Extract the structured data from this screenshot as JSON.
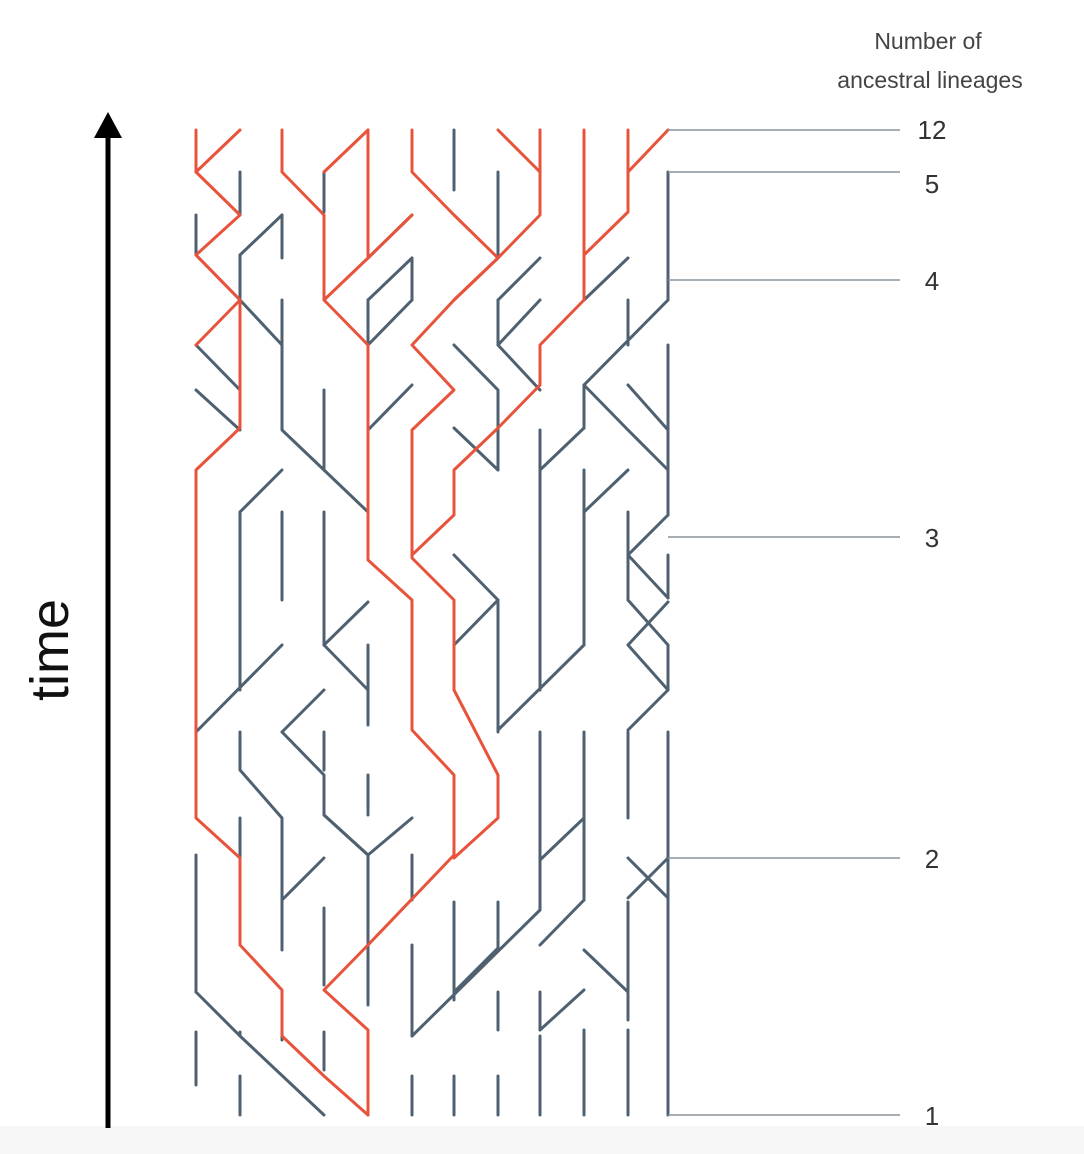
{
  "axis": {
    "label": "time"
  },
  "legend": {
    "header_line1": "Number of",
    "header_line2": "ancestral lineages"
  },
  "lineage_counts": [
    "12",
    "5",
    "4",
    "3",
    "2",
    "1"
  ],
  "colors": {
    "ancestral_lineage": "#e8533c",
    "other_lineage": "#4f6170",
    "arrow": "#000000"
  }
}
